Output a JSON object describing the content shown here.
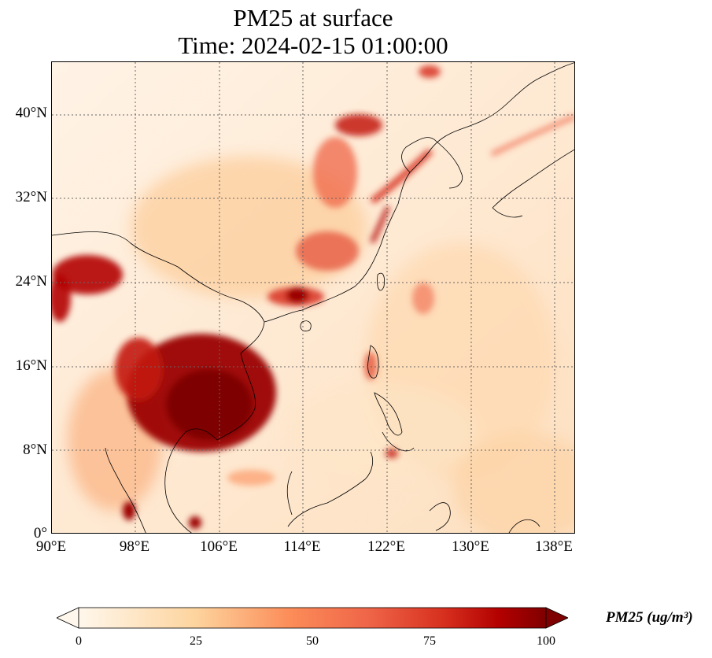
{
  "figure": {
    "title_line1": "PM25 at surface",
    "title_line2": "Time: 2024-02-15 01:00:00"
  },
  "map": {
    "projection": "PlateCarree",
    "lon_range": [
      90,
      140
    ],
    "lat_range": [
      0,
      45
    ],
    "gridlines": true,
    "lat_ticks": [
      "40°N",
      "32°N",
      "24°N",
      "16°N",
      "8°N",
      "0°"
    ],
    "lon_ticks": [
      "90°E",
      "98°E",
      "106°E",
      "114°E",
      "122°E",
      "130°E",
      "138°E"
    ],
    "coastlines": true,
    "colormap": "OrRd",
    "colors": {
      "background": "#fff3e6",
      "low": "#fdd7a8",
      "mid": "#ef6548",
      "high": "#b30000",
      "max": "#7f0000",
      "coastline": "#000000",
      "grid": "#666666"
    }
  },
  "colorbar": {
    "label": "PM25 (ug/m³)",
    "ticks": [
      "0",
      "25",
      "50",
      "75",
      "100"
    ],
    "range": [
      0,
      100
    ],
    "extend": "both"
  },
  "chart_data": {
    "type": "heatmap",
    "title": "PM25 at surface\nTime: 2024-02-15 01:00:00",
    "variable": "PM25",
    "units": "ug/m³",
    "value_range": [
      0,
      100
    ],
    "hotspots": [
      {
        "lon": 104.5,
        "lat": 14.0,
        "value": 100
      },
      {
        "lon": 102.0,
        "lat": 18.0,
        "value": 100
      },
      {
        "lon": 93.0,
        "lat": 25.5,
        "value": 90
      },
      {
        "lon": 114.5,
        "lat": 22.5,
        "value": 85
      },
      {
        "lon": 117.5,
        "lat": 40.0,
        "value": 85
      },
      {
        "lon": 126.0,
        "lat": 36.5,
        "value": 70
      },
      {
        "lon": 115.0,
        "lat": 37.0,
        "value": 65
      },
      {
        "lon": 98.0,
        "lat": 17.5,
        "value": 70
      },
      {
        "lon": 120.0,
        "lat": 28.0,
        "value": 60
      },
      {
        "lon": 96.0,
        "lat": 2.5,
        "value": 80
      }
    ]
  }
}
